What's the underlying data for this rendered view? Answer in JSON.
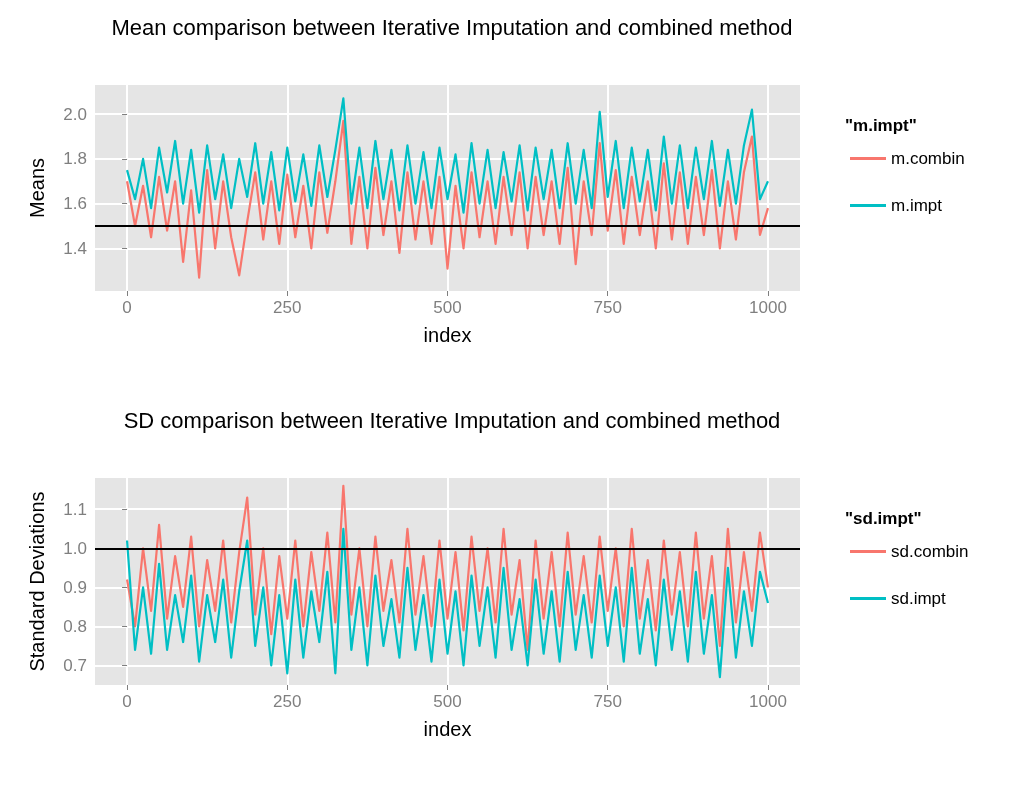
{
  "chart_data": [
    {
      "type": "line",
      "title": "Mean comparison between Iterative Imputation and combined method",
      "xlabel": "index",
      "ylabel": "Means",
      "legend_title": "\"m.impt\"",
      "legend": "right",
      "grid": true,
      "x": [
        0,
        12.5,
        25,
        37.5,
        50,
        62.5,
        75,
        87.5,
        100,
        112.5,
        125,
        137.5,
        150,
        162.5,
        175,
        187.5,
        200,
        212.5,
        225,
        237.5,
        250,
        262.5,
        275,
        287.5,
        300,
        312.5,
        325,
        337.5,
        350,
        362.5,
        375,
        387.5,
        400,
        412.5,
        425,
        437.5,
        450,
        462.5,
        475,
        487.5,
        500,
        512.5,
        525,
        537.5,
        550,
        562.5,
        575,
        587.5,
        600,
        612.5,
        625,
        637.5,
        650,
        662.5,
        675,
        687.5,
        700,
        712.5,
        725,
        737.5,
        750,
        762.5,
        775,
        787.5,
        800,
        812.5,
        825,
        837.5,
        850,
        862.5,
        875,
        887.5,
        900,
        912.5,
        925,
        937.5,
        950,
        962.5,
        975,
        987.5,
        1000
      ],
      "xlim": [
        -50,
        1050
      ],
      "xticks": [
        0,
        250,
        500,
        750,
        1000
      ],
      "ylim": [
        1.21,
        2.13
      ],
      "yticks": [
        1.4,
        1.6,
        1.8,
        {
          "value": 2,
          "label": "2.0"
        }
      ],
      "ref_lines": [
        {
          "axis": "y",
          "value": 1.5,
          "color": "#000000"
        }
      ],
      "series": [
        {
          "name": "m.combin",
          "color": "#f8766d",
          "values": [
            1.7,
            1.5,
            1.68,
            1.45,
            1.72,
            1.48,
            1.7,
            1.34,
            1.66,
            1.27,
            1.75,
            1.4,
            1.7,
            1.45,
            1.28,
            1.52,
            1.74,
            1.44,
            1.7,
            1.42,
            1.73,
            1.45,
            1.68,
            1.4,
            1.74,
            1.47,
            1.7,
            1.97,
            1.42,
            1.72,
            1.4,
            1.76,
            1.46,
            1.7,
            1.38,
            1.74,
            1.44,
            1.7,
            1.42,
            1.72,
            1.31,
            1.68,
            1.4,
            1.74,
            1.45,
            1.7,
            1.42,
            1.72,
            1.46,
            1.74,
            1.4,
            1.72,
            1.46,
            1.7,
            1.42,
            1.76,
            1.33,
            1.7,
            1.46,
            1.87,
            1.48,
            1.75,
            1.42,
            1.72,
            1.46,
            1.7,
            1.4,
            1.78,
            1.44,
            1.74,
            1.42,
            1.72,
            1.46,
            1.75,
            1.4,
            1.7,
            1.44,
            1.74,
            1.9,
            1.46,
            1.58
          ]
        },
        {
          "name": "m.impt",
          "color": "#00bfc4",
          "values": [
            1.75,
            1.62,
            1.8,
            1.58,
            1.85,
            1.65,
            1.88,
            1.6,
            1.84,
            1.56,
            1.86,
            1.62,
            1.82,
            1.58,
            1.8,
            1.63,
            1.87,
            1.6,
            1.83,
            1.57,
            1.85,
            1.61,
            1.82,
            1.59,
            1.86,
            1.63,
            1.84,
            2.07,
            1.6,
            1.85,
            1.58,
            1.88,
            1.62,
            1.84,
            1.57,
            1.86,
            1.6,
            1.83,
            1.58,
            1.85,
            1.62,
            1.82,
            1.56,
            1.87,
            1.6,
            1.84,
            1.58,
            1.83,
            1.61,
            1.86,
            1.57,
            1.85,
            1.62,
            1.84,
            1.58,
            1.87,
            1.6,
            1.84,
            1.58,
            2.01,
            1.63,
            1.88,
            1.58,
            1.85,
            1.61,
            1.84,
            1.57,
            1.9,
            1.6,
            1.86,
            1.58,
            1.85,
            1.62,
            1.88,
            1.59,
            1.84,
            1.6,
            1.86,
            2.02,
            1.62,
            1.7
          ]
        }
      ]
    },
    {
      "type": "line",
      "title": "SD comparison between Iterative Imputation and combined method",
      "xlabel": "index",
      "ylabel": "Standard Deviations",
      "legend_title": "\"sd.impt\"",
      "legend": "right",
      "grid": true,
      "x": [
        0,
        12.5,
        25,
        37.5,
        50,
        62.5,
        75,
        87.5,
        100,
        112.5,
        125,
        137.5,
        150,
        162.5,
        175,
        187.5,
        200,
        212.5,
        225,
        237.5,
        250,
        262.5,
        275,
        287.5,
        300,
        312.5,
        325,
        337.5,
        350,
        362.5,
        375,
        387.5,
        400,
        412.5,
        425,
        437.5,
        450,
        462.5,
        475,
        487.5,
        500,
        512.5,
        525,
        537.5,
        550,
        562.5,
        575,
        587.5,
        600,
        612.5,
        625,
        637.5,
        650,
        662.5,
        675,
        687.5,
        700,
        712.5,
        725,
        737.5,
        750,
        762.5,
        775,
        787.5,
        800,
        812.5,
        825,
        837.5,
        850,
        862.5,
        875,
        887.5,
        900,
        912.5,
        925,
        937.5,
        950,
        962.5,
        975,
        987.5,
        1000
      ],
      "xlim": [
        -50,
        1050
      ],
      "xticks": [
        0,
        250,
        500,
        750,
        1000
      ],
      "ylim": [
        0.65,
        1.18
      ],
      "yticks": [
        0.7,
        0.8,
        0.9,
        {
          "value": 1,
          "label": "1.0"
        },
        1.1
      ],
      "ref_lines": [
        {
          "axis": "y",
          "value": 1,
          "color": "#000000"
        }
      ],
      "series": [
        {
          "name": "sd.combin",
          "color": "#f8766d",
          "values": [
            0.92,
            0.8,
            1.0,
            0.84,
            1.06,
            0.82,
            0.98,
            0.85,
            1.03,
            0.8,
            0.97,
            0.84,
            1.02,
            0.81,
            0.99,
            1.13,
            0.83,
            1.0,
            0.78,
            0.98,
            0.82,
            1.02,
            0.8,
            0.99,
            0.84,
            1.04,
            0.81,
            1.16,
            0.83,
            1.0,
            0.8,
            1.03,
            0.84,
            0.97,
            0.81,
            1.05,
            0.83,
            0.98,
            0.8,
            1.02,
            0.82,
            0.99,
            0.79,
            1.03,
            0.84,
            1.0,
            0.81,
            1.05,
            0.83,
            0.97,
            0.74,
            1.02,
            0.82,
            0.99,
            0.8,
            1.04,
            0.83,
            0.98,
            0.81,
            1.03,
            0.84,
            1.0,
            0.8,
            1.05,
            0.82,
            0.97,
            0.79,
            1.02,
            0.83,
            0.99,
            0.8,
            1.04,
            0.82,
            0.98,
            0.75,
            1.05,
            0.81,
            0.99,
            0.84,
            1.04,
            0.9
          ]
        },
        {
          "name": "sd.impt",
          "color": "#00bfc4",
          "values": [
            1.02,
            0.74,
            0.9,
            0.73,
            0.96,
            0.74,
            0.88,
            0.76,
            0.93,
            0.71,
            0.88,
            0.76,
            0.92,
            0.72,
            0.89,
            1.02,
            0.75,
            0.9,
            0.7,
            0.88,
            0.68,
            0.92,
            0.72,
            0.89,
            0.76,
            0.94,
            0.68,
            1.05,
            0.74,
            0.9,
            0.7,
            0.93,
            0.75,
            0.87,
            0.72,
            0.95,
            0.74,
            0.88,
            0.71,
            0.92,
            0.73,
            0.89,
            0.7,
            0.93,
            0.75,
            0.9,
            0.72,
            0.95,
            0.74,
            0.87,
            0.7,
            0.92,
            0.73,
            0.89,
            0.71,
            0.94,
            0.74,
            0.88,
            0.72,
            0.93,
            0.75,
            0.9,
            0.71,
            0.95,
            0.73,
            0.87,
            0.7,
            0.92,
            0.74,
            0.89,
            0.71,
            0.94,
            0.73,
            0.88,
            0.67,
            0.95,
            0.72,
            0.89,
            0.75,
            0.94,
            0.86
          ]
        }
      ]
    }
  ]
}
